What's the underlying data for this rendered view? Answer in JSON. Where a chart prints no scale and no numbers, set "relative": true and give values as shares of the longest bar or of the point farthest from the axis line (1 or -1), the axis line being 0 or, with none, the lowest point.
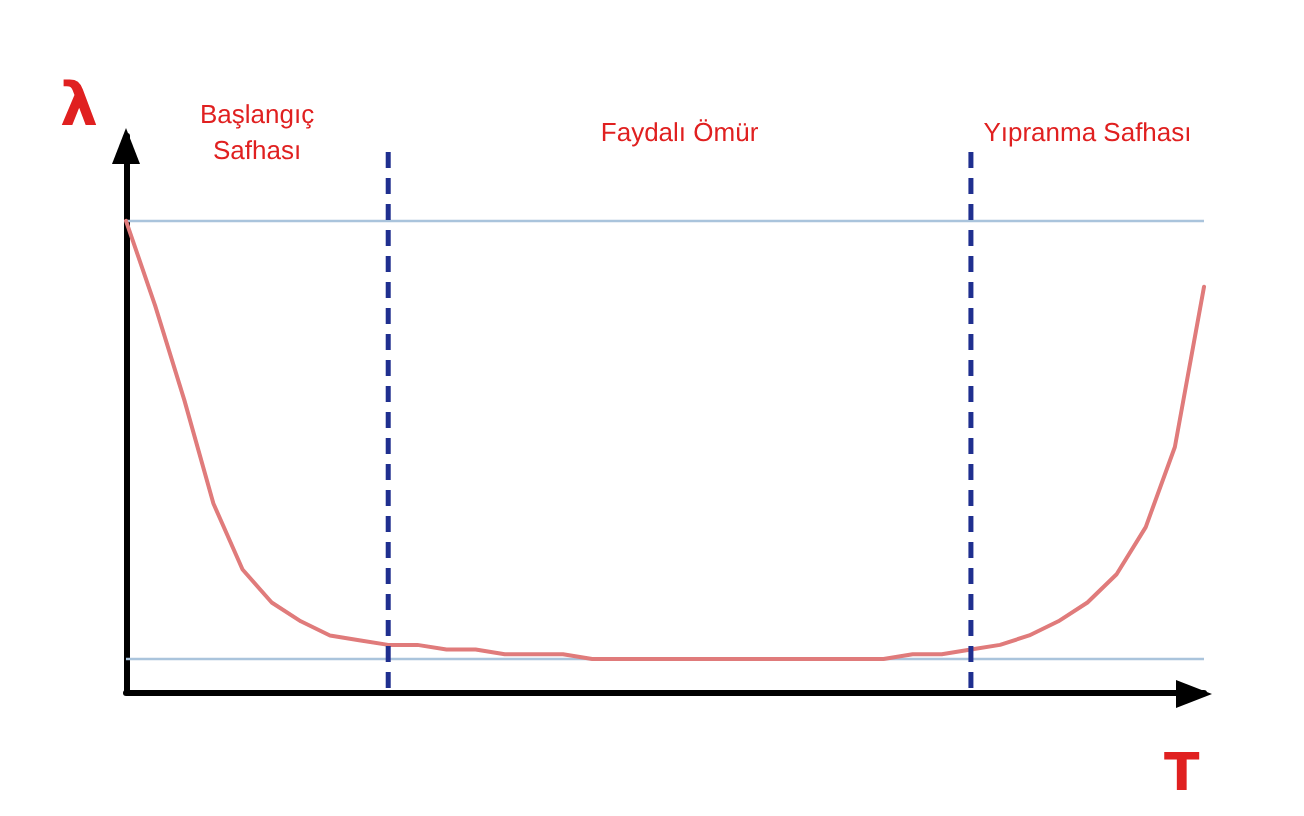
{
  "chart_data": {
    "type": "line",
    "relative": true,
    "xlabel": "T",
    "ylabel": "λ",
    "categories": [
      null,
      null,
      null,
      null,
      null,
      null,
      null,
      null,
      null,
      null,
      null,
      null,
      null,
      null,
      null,
      null,
      null,
      null,
      null,
      null,
      null,
      null,
      null,
      null,
      null,
      null,
      null,
      null,
      null,
      null,
      null,
      null,
      null,
      null,
      null,
      null,
      null,
      null
    ],
    "series": [
      {
        "color": "#e07b7b",
        "values": [
          1.0,
          0.82,
          0.62,
          0.4,
          0.26,
          0.19,
          0.15,
          0.12,
          0.11,
          0.1,
          0.1,
          0.09,
          0.09,
          0.08,
          0.08,
          0.08,
          0.07,
          0.07,
          0.07,
          0.07,
          0.07,
          0.07,
          0.07,
          0.07,
          0.07,
          0.07,
          0.07,
          0.08,
          0.08,
          0.09,
          0.1,
          0.12,
          0.15,
          0.19,
          0.25,
          0.35,
          0.52,
          0.86
        ]
      }
    ],
    "ref_lines": [
      {
        "axis": "y",
        "value": 1,
        "color": "#aac4dc",
        "line_style": "solid"
      },
      {
        "axis": "y",
        "value": 0.07,
        "color": "#aac4dc",
        "line_style": "solid"
      }
    ],
    "annotations": [
      "Başlangıç\nSafhası",
      "Faydalı Ömür",
      "Yıpranma Safhası"
    ],
    "grid": false,
    "marker": "none",
    "line_style": "solid"
  }
}
